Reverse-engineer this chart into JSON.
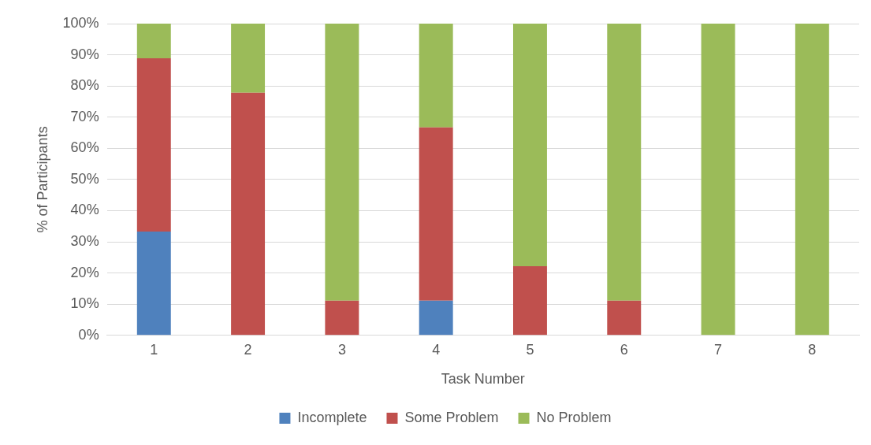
{
  "chart_data": {
    "type": "bar",
    "stacked": true,
    "xlabel": "Task Number",
    "ylabel": "% of Participants",
    "categories": [
      "1",
      "2",
      "3",
      "4",
      "5",
      "6",
      "7",
      "8"
    ],
    "series": [
      {
        "name": "Incomplete",
        "color": "#4f81bd",
        "values": [
          33.3,
          0,
          0,
          11.1,
          0,
          0,
          0,
          0
        ]
      },
      {
        "name": "Some Problem",
        "color": "#c0504d",
        "values": [
          55.6,
          77.8,
          11.1,
          55.6,
          22.2,
          11.1,
          0,
          0
        ]
      },
      {
        "name": "No Problem",
        "color": "#9bbb59",
        "values": [
          11.1,
          22.2,
          88.9,
          33.3,
          77.8,
          88.9,
          100,
          100
        ]
      }
    ],
    "ylim": [
      0,
      100
    ],
    "yticks": [
      {
        "value": 0,
        "label": "0%"
      },
      {
        "value": 10,
        "label": "10%"
      },
      {
        "value": 20,
        "label": "20%"
      },
      {
        "value": 30,
        "label": "30%"
      },
      {
        "value": 40,
        "label": "40%"
      },
      {
        "value": 50,
        "label": "50%"
      },
      {
        "value": 60,
        "label": "60%"
      },
      {
        "value": 70,
        "label": "70%"
      },
      {
        "value": 80,
        "label": "80%"
      },
      {
        "value": 90,
        "label": "90%"
      },
      {
        "value": 100,
        "label": "100%"
      }
    ],
    "grid": "y",
    "legend": "bottom"
  }
}
